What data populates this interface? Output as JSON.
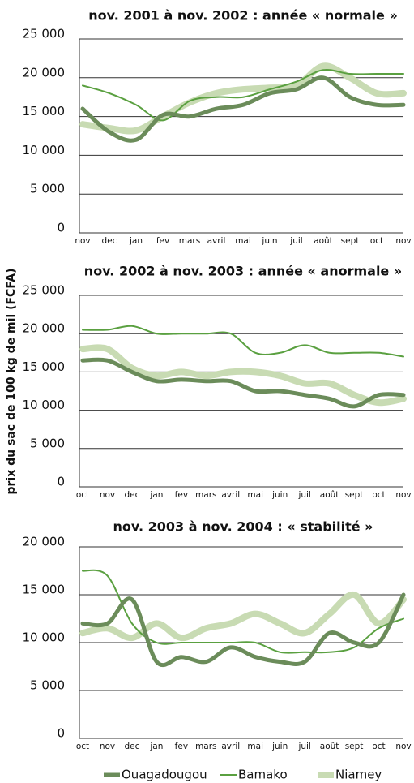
{
  "chart_data": [
    {
      "type": "line",
      "title": "nov. 2001 à nov. 2002 : année « normale »",
      "categories": [
        "nov",
        "dec",
        "jan",
        "fev",
        "mars",
        "avril",
        "mai",
        "juin",
        "juil",
        "août",
        "sept",
        "oct",
        "nov"
      ],
      "ylim": [
        0,
        25000
      ],
      "yticks": [
        0,
        {
          "value": 5000,
          "label": "5 000"
        },
        {
          "value": 10000,
          "label": "10 000"
        },
        {
          "value": 15000,
          "label": "15 000"
        },
        {
          "value": 20000,
          "label": "20 000"
        },
        {
          "value": 25000,
          "label": "25 000"
        }
      ],
      "grid": true,
      "series": [
        {
          "color": "#c8dbb3",
          "values": [
            14000,
            13500,
            13200,
            15000,
            16800,
            18000,
            18500,
            18700,
            19000,
            21500,
            20000,
            18000,
            18000
          ]
        },
        {
          "color": "#5aa040",
          "values": [
            19000,
            18000,
            16500,
            14500,
            17000,
            17500,
            17500,
            18500,
            19500,
            21000,
            20500,
            20500,
            20500
          ]
        },
        {
          "color": "#6b8c5a",
          "values": [
            16000,
            13000,
            12000,
            15200,
            15000,
            16000,
            16500,
            18000,
            18500,
            20000,
            17500,
            16500,
            16500
          ]
        }
      ]
    },
    {
      "type": "line",
      "title": "nov. 2002 à nov. 2003 : année « anormale »",
      "ylabel": "prix du sac de 100 kg de mil (FCFA)",
      "categories": [
        "oct",
        "nov",
        "dec",
        "jan",
        "fev",
        "mars",
        "avril",
        "mai",
        "juin",
        "juil",
        "août",
        "sept",
        "oct",
        "nov"
      ],
      "ylim": [
        0,
        25000
      ],
      "yticks": [
        0,
        {
          "value": 5000,
          "label": "5 000"
        },
        {
          "value": 10000,
          "label": "10 000"
        },
        {
          "value": 15000,
          "label": "15 000"
        },
        {
          "value": 20000,
          "label": "20 000"
        },
        {
          "value": 25000,
          "label": "25 000"
        }
      ],
      "grid": true,
      "series": [
        {
          "color": "#c8dbb3",
          "values": [
            18000,
            18000,
            15500,
            14500,
            15000,
            14500,
            15000,
            15000,
            14500,
            13500,
            13500,
            12000,
            11000,
            11500
          ]
        },
        {
          "color": "#5aa040",
          "values": [
            20500,
            20500,
            21000,
            20000,
            20000,
            20000,
            20000,
            17500,
            17500,
            18500,
            17500,
            17500,
            17500,
            17000
          ]
        },
        {
          "color": "#6b8c5a",
          "values": [
            16500,
            16500,
            15000,
            13800,
            14000,
            13800,
            13800,
            12500,
            12500,
            12000,
            11500,
            10500,
            12000,
            12000
          ]
        }
      ]
    },
    {
      "type": "line",
      "title": "nov. 2003 à nov. 2004 : « stabilité »",
      "categories": [
        "oct",
        "nov",
        "dec",
        "jan",
        "fev",
        "mars",
        "avril",
        "mai",
        "juin",
        "juil",
        "août",
        "sept",
        "oct",
        "nov"
      ],
      "ylim": [
        0,
        20000
      ],
      "yticks": [
        0,
        {
          "value": 5000,
          "label": "5 000"
        },
        {
          "value": 10000,
          "label": "10 000"
        },
        {
          "value": 15000,
          "label": "15 000"
        },
        {
          "value": 20000,
          "label": "20 000"
        }
      ],
      "grid": true,
      "series": [
        {
          "name": "Niamey",
          "color": "#c8dbb3",
          "values": [
            11000,
            11500,
            10500,
            12000,
            10500,
            11500,
            12000,
            13000,
            12000,
            11000,
            13000,
            15000,
            12000,
            14500
          ]
        },
        {
          "name": "Bamako",
          "color": "#5aa040",
          "values": [
            17500,
            17000,
            12000,
            10000,
            10000,
            10000,
            10000,
            10000,
            9000,
            9000,
            9000,
            9500,
            11500,
            12500
          ]
        },
        {
          "name": "Ouagadougou",
          "color": "#6b8c5a",
          "values": [
            12000,
            12000,
            14500,
            8000,
            8500,
            8000,
            9500,
            8500,
            8000,
            8000,
            11000,
            10000,
            10000,
            15000
          ]
        }
      ]
    }
  ]
}
